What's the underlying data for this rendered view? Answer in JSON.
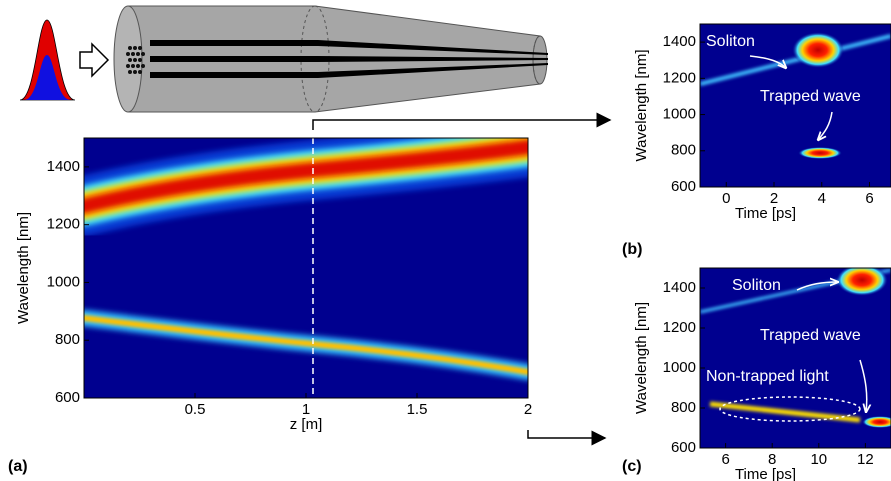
{
  "chart_data": [
    {
      "type": "heatmap",
      "panel": "(a)",
      "xlabel": "z [m]",
      "ylabel": "Wavelength [nm]",
      "xlim": [
        0,
        2
      ],
      "ylim": [
        600,
        1500
      ],
      "xticks": [
        0.5,
        1,
        1.5,
        2
      ],
      "yticks": [
        600,
        800,
        1000,
        1200,
        1400
      ],
      "annotations": []
    },
    {
      "type": "heatmap",
      "panel": "(b)",
      "xlabel": "Time [ps]",
      "ylabel": "Wavelength [nm]",
      "xlim": [
        -1.1,
        6.9
      ],
      "ylim": [
        600,
        1500
      ],
      "xticks": [
        0,
        2,
        4,
        6
      ],
      "yticks": [
        600,
        800,
        1000,
        1200,
        1400
      ],
      "annotations": [
        "Soliton",
        "Trapped wave"
      ]
    },
    {
      "type": "heatmap",
      "panel": "(c)",
      "xlabel": "Time [ps]",
      "ylabel": "Wavelength [nm]",
      "xlim": [
        4.9,
        13.1
      ],
      "ylim": [
        600,
        1500
      ],
      "xticks": [
        6,
        8,
        10,
        12
      ],
      "yticks": [
        600,
        800,
        1000,
        1200,
        1400
      ],
      "annotations": [
        "Soliton",
        "Trapped wave",
        "Non-trapped light"
      ]
    }
  ]
}
